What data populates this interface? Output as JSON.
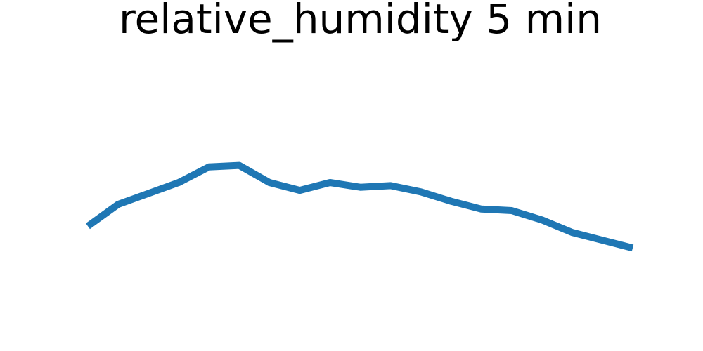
{
  "chart_data": {
    "type": "line",
    "title": "relative_humidity 5 min",
    "xlabel": "",
    "ylabel": "",
    "axes_visible": false,
    "grid": false,
    "legend": "none",
    "x": [
      0,
      1,
      2,
      3,
      4,
      5,
      6,
      7,
      8,
      9,
      10,
      11,
      12,
      13,
      14,
      15,
      16,
      17,
      18
    ],
    "series": [
      {
        "color": "#1f77b4",
        "values": [
          40.8,
          42.2,
          42.9,
          43.6,
          44.6,
          44.7,
          43.6,
          43.1,
          43.6,
          43.3,
          43.4,
          43.0,
          42.4,
          41.9,
          41.8,
          41.2,
          40.4,
          39.9,
          39.4
        ]
      }
    ],
    "xlim": [
      0,
      18
    ],
    "ylim": [
      34.6,
      52.6
    ]
  }
}
